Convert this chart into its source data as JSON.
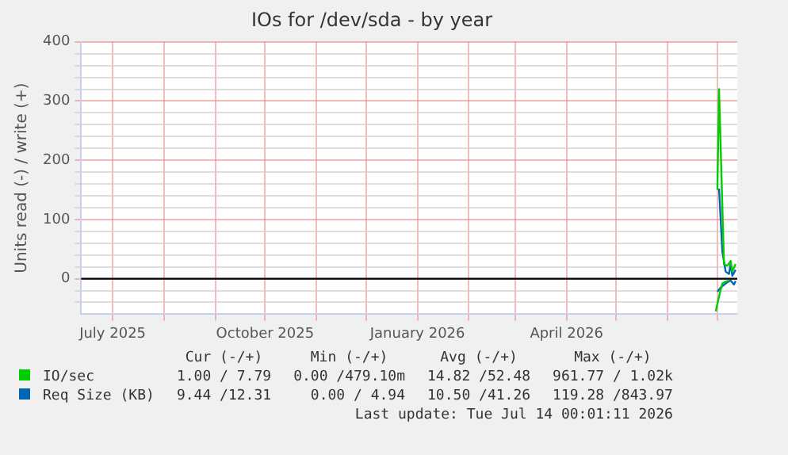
{
  "chart_data": {
    "type": "line",
    "title": "IOs for /dev/sda - by year",
    "ylabel": "Units read (-) / write (+)",
    "xlim": [
      "2025-06-12",
      "2026-07-13"
    ],
    "xticks": [
      {
        "value": "2025-07-01",
        "label": "July 2025"
      },
      {
        "value": "2025-08-01",
        "label": null
      },
      {
        "value": "2025-09-01",
        "label": null
      },
      {
        "value": "2025-10-01",
        "label": "October 2025"
      },
      {
        "value": "2025-11-01",
        "label": null
      },
      {
        "value": "2025-12-01",
        "label": null
      },
      {
        "value": "2026-01-01",
        "label": "January 2026"
      },
      {
        "value": "2026-02-01",
        "label": null
      },
      {
        "value": "2026-03-01",
        "label": null
      },
      {
        "value": "2026-04-01",
        "label": "April 2026"
      },
      {
        "value": "2026-05-01",
        "label": null
      },
      {
        "value": "2026-06-01",
        "label": null
      },
      {
        "value": "2026-07-01",
        "label": null
      }
    ],
    "ylim": [
      -60,
      400
    ],
    "yticks": [
      {
        "value": -40,
        "label": null
      },
      {
        "value": -20,
        "label": null
      },
      0,
      {
        "value": 20,
        "label": null
      },
      {
        "value": 40,
        "label": null
      },
      {
        "value": 60,
        "label": null
      },
      {
        "value": 80,
        "label": null
      },
      100,
      {
        "value": 120,
        "label": null
      },
      {
        "value": 140,
        "label": null
      },
      {
        "value": 160,
        "label": null
      },
      {
        "value": 180,
        "label": null
      },
      200,
      {
        "value": 220,
        "label": null
      },
      {
        "value": 240,
        "label": null
      },
      {
        "value": 260,
        "label": null
      },
      {
        "value": 280,
        "label": null
      },
      300,
      {
        "value": 320,
        "label": null
      },
      {
        "value": 340,
        "label": null
      },
      {
        "value": 360,
        "label": null
      },
      {
        "value": 380,
        "label": null
      },
      400
    ],
    "grid": true,
    "legend": "bottom",
    "marker": "none",
    "line_style": "solid",
    "ref_lines": [
      {
        "axis": "y",
        "value": 0,
        "color": "#000000"
      }
    ],
    "series": [
      {
        "name": "IO/sec",
        "color": "#00cc00",
        "x": [
          "2026-07-01",
          "2026-07-02",
          "2026-07-05",
          "2026-07-07",
          "2026-07-09",
          "2026-07-10",
          "2026-07-12"
        ],
        "values": [
          150,
          320,
          24,
          22,
          30,
          12,
          25
        ]
      },
      {
        "color": "#00cc00",
        "x": [
          "2026-06-30",
          "2026-07-02",
          "2026-07-04",
          "2026-07-06",
          "2026-07-08"
        ],
        "values": [
          -55,
          -30,
          -8,
          -5,
          -3
        ]
      },
      {
        "name": "Req Size (KB)",
        "color": "#0066b3",
        "x": [
          "2026-07-02",
          "2026-07-04",
          "2026-07-06",
          "2026-07-08",
          "2026-07-09",
          "2026-07-10",
          "2026-07-12"
        ],
        "values": [
          152,
          46,
          12,
          8,
          25,
          5,
          15
        ]
      },
      {
        "color": "#0066b3",
        "x": [
          "2026-07-01",
          "2026-07-03",
          "2026-07-06",
          "2026-07-09",
          "2026-07-11",
          "2026-07-12"
        ],
        "values": [
          -22,
          -15,
          -8,
          -3,
          -10,
          -4
        ]
      }
    ],
    "annotations": [
      "Cur (-/+)",
      "Min (-/+)",
      "Avg (-/+)",
      "Max (-/+)",
      "1.00 / 7.79",
      "0.00 /479.10m",
      "14.82 /52.48",
      "961.77 / 1.02k",
      "9.44 /12.31",
      "0.00 / 4.94",
      "10.50 /41.26",
      "119.28 /843.97",
      "Last update: Tue Jul 14 00:01:11 2026"
    ]
  }
}
